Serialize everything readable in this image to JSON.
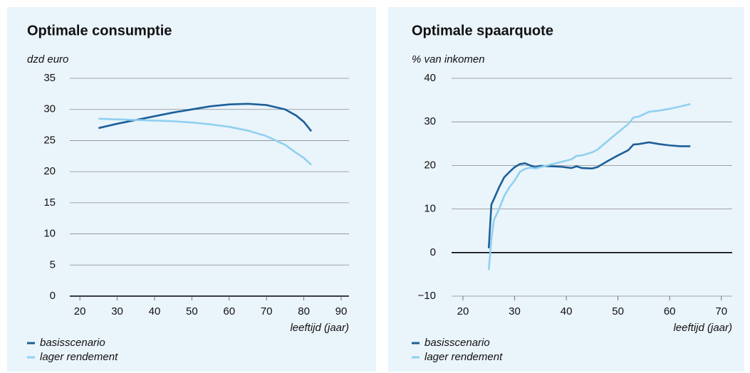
{
  "chart_data": [
    {
      "type": "line",
      "title": "Optimale consumptie",
      "y_unit_label": "dzd euro",
      "x_label": "leeftijd (jaar)",
      "x": [
        25,
        30,
        35,
        40,
        45,
        50,
        55,
        60,
        65,
        70,
        75,
        78,
        80,
        82
      ],
      "series": [
        {
          "name": "basisscenario",
          "color": "#1b5f98",
          "values": [
            27.0,
            27.7,
            28.3,
            28.9,
            29.5,
            30.0,
            30.5,
            30.8,
            30.9,
            30.7,
            30.0,
            29.0,
            28.0,
            26.5
          ]
        },
        {
          "name": "lager rendement",
          "color": "#8fd0f0",
          "values": [
            28.5,
            28.4,
            28.3,
            28.2,
            28.1,
            27.9,
            27.6,
            27.2,
            26.6,
            25.7,
            24.3,
            23.0,
            22.2,
            21.1
          ]
        }
      ],
      "xlim": [
        17.3,
        92.1
      ],
      "xticks": [
        20,
        30,
        40,
        50,
        60,
        70,
        80,
        90
      ],
      "ylim": [
        0,
        35
      ],
      "yticks": [
        0,
        5,
        10,
        15,
        20,
        25,
        30,
        35
      ],
      "grid": true
    },
    {
      "type": "line",
      "title": "Optimale spaarquote",
      "y_unit_label": "% van inkomen",
      "x_label": "leeftijd (jaar)",
      "x": [
        25,
        25.5,
        26,
        27,
        28,
        29,
        30,
        31,
        32,
        33,
        34,
        35,
        37,
        39,
        41,
        42,
        43,
        45,
        46,
        48,
        50,
        52,
        53,
        54,
        56,
        58,
        60,
        62,
        64
      ],
      "series": [
        {
          "name": "basisscenario",
          "color": "#1b5f98",
          "values": [
            1,
            11,
            12.3,
            15,
            17.3,
            18.5,
            19.6,
            20.3,
            20.5,
            20,
            19.6,
            19.9,
            19.8,
            19.7,
            19.4,
            19.8,
            19.4,
            19.3,
            19.6,
            21,
            22.3,
            23.5,
            24.8,
            24.9,
            25.3,
            24.9,
            24.6,
            24.4,
            24.4
          ]
        },
        {
          "name": "lager rendement",
          "color": "#8fd0f0",
          "values": [
            -4,
            3,
            7.5,
            10,
            13,
            15,
            16.5,
            18.5,
            19.2,
            19.5,
            19.3,
            19.6,
            20.2,
            20.8,
            21.4,
            22.2,
            22.3,
            23,
            23.6,
            25.6,
            27.6,
            29.5,
            31,
            31.2,
            32.3,
            32.6,
            33,
            33.5,
            34.1
          ]
        }
      ],
      "xlim": [
        17.8,
        72.1
      ],
      "xticks": [
        20,
        30,
        40,
        50,
        60,
        70
      ],
      "ylim": [
        -10,
        40
      ],
      "yticks": [
        {
          "value": -10,
          "label": "−10"
        },
        0,
        10,
        20,
        30,
        40
      ],
      "grid": true
    }
  ]
}
